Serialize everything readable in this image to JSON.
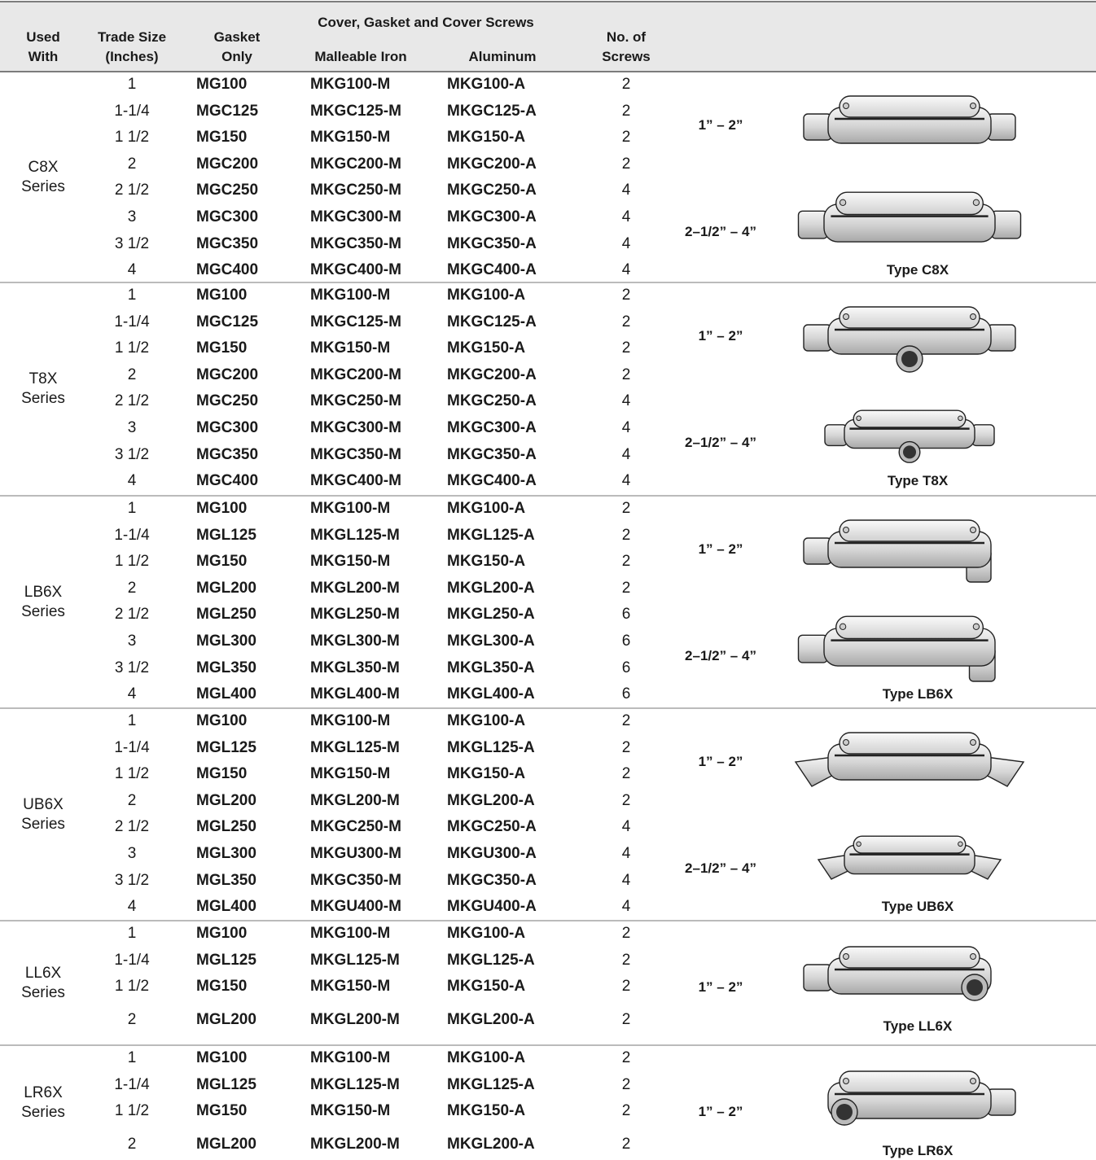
{
  "header": {
    "used_with": "Used With",
    "trade_size": "Trade Size (Inches)",
    "gasket_only": "Gasket Only",
    "cover_group": "Cover, Gasket and Cover Screws",
    "malleable_iron": "Malleable Iron",
    "aluminum": "Aluminum",
    "no_of_screws": "No. of Screws"
  },
  "groups": [
    {
      "used_with": "C8X Series",
      "rows": [
        [
          "1",
          "MG100",
          "MKG100-M",
          "MKG100-A",
          2
        ],
        [
          "1-1/4",
          "MGC125",
          "MKGC125-M",
          "MKGC125-A",
          2
        ],
        [
          "1 1/2",
          "MG150",
          "MKG150-M",
          "MKG150-A",
          2
        ],
        [
          "2",
          "MGC200",
          "MKGC200-M",
          "MKGC200-A",
          2
        ],
        [
          "2 1/2",
          "MGC250",
          "MKGC250-M",
          "MKGC250-A",
          4
        ],
        [
          "3",
          "MGC300",
          "MKGC300-M",
          "MKGC300-A",
          4
        ],
        [
          "3 1/2",
          "MGC350",
          "MKGC350-M",
          "MKGC350-A",
          4
        ],
        [
          "4",
          "MGC400",
          "MKGC400-M",
          "MKGC400-A",
          4
        ]
      ],
      "ranges": [
        "1” – 2”",
        "2–1/2” – 4”"
      ],
      "type_label": "Type C8X"
    },
    {
      "used_with": "T8X Series",
      "rows": [
        [
          "1",
          "MG100",
          "MKG100-M",
          "MKG100-A",
          2
        ],
        [
          "1-1/4",
          "MGC125",
          "MKGC125-M",
          "MKGC125-A",
          2
        ],
        [
          "1 1/2",
          "MG150",
          "MKG150-M",
          "MKG150-A",
          2
        ],
        [
          "2",
          "MGC200",
          "MKGC200-M",
          "MKGC200-A",
          2
        ],
        [
          "2 1/2",
          "MGC250",
          "MKGC250-M",
          "MKGC250-A",
          4
        ],
        [
          "3",
          "MGC300",
          "MKGC300-M",
          "MKGC300-A",
          4
        ],
        [
          "3 1/2",
          "MGC350",
          "MKGC350-M",
          "MKGC350-A",
          4
        ],
        [
          "4",
          "MGC400",
          "MKGC400-M",
          "MKGC400-A",
          4
        ]
      ],
      "ranges": [
        "1” – 2”",
        "2–1/2” – 4”"
      ],
      "type_label": "Type T8X"
    },
    {
      "used_with": "LB6X Series",
      "rows": [
        [
          "1",
          "MG100",
          "MKG100-M",
          "MKG100-A",
          2
        ],
        [
          "1-1/4",
          "MGL125",
          "MKGL125-M",
          "MKGL125-A",
          2
        ],
        [
          "1 1/2",
          "MG150",
          "MKG150-M",
          "MKG150-A",
          2
        ],
        [
          "2",
          "MGL200",
          "MKGL200-M",
          "MKGL200-A",
          2
        ],
        [
          "2 1/2",
          "MGL250",
          "MKGL250-M",
          "MKGL250-A",
          6
        ],
        [
          "3",
          "MGL300",
          "MKGL300-M",
          "MKGL300-A",
          6
        ],
        [
          "3 1/2",
          "MGL350",
          "MKGL350-M",
          "MKGL350-A",
          6
        ],
        [
          "4",
          "MGL400",
          "MKGL400-M",
          "MKGL400-A",
          6
        ]
      ],
      "ranges": [
        "1” – 2”",
        "2–1/2” – 4”"
      ],
      "type_label": "Type LB6X"
    },
    {
      "used_with": "UB6X Series",
      "rows": [
        [
          "1",
          "MG100",
          "MKG100-M",
          "MKG100-A",
          2
        ],
        [
          "1-1/4",
          "MGL125",
          "MKGL125-M",
          "MKGL125-A",
          2
        ],
        [
          "1 1/2",
          "MG150",
          "MKG150-M",
          "MKG150-A",
          2
        ],
        [
          "2",
          "MGL200",
          "MKGL200-M",
          "MKGL200-A",
          2
        ],
        [
          "2 1/2",
          "MGL250",
          "MKGC250-M",
          "MKGC250-A",
          4
        ],
        [
          "3",
          "MGL300",
          "MKGU300-M",
          "MKGU300-A",
          4
        ],
        [
          "3 1/2",
          "MGL350",
          "MKGC350-M",
          "MKGC350-A",
          4
        ],
        [
          "4",
          "MGL400",
          "MKGU400-M",
          "MKGU400-A",
          4
        ]
      ],
      "ranges": [
        "1” – 2”",
        "2–1/2” – 4”"
      ],
      "type_label": "Type UB6X"
    },
    {
      "used_with": "LL6X Series",
      "rows": [
        [
          "1",
          "MG100",
          "MKG100-M",
          "MKG100-A",
          2
        ],
        [
          "1-1/4",
          "MGL125",
          "MKGL125-M",
          "MKGL125-A",
          2
        ],
        [
          "1 1/2",
          "MG150",
          "MKG150-M",
          "MKG150-A",
          2
        ],
        [
          "2",
          "MGL200",
          "MKGL200-M",
          "MKGL200-A",
          2
        ]
      ],
      "ranges": [
        "1” – 2”"
      ],
      "type_label": "Type LL6X"
    },
    {
      "used_with": "LR6X Series",
      "rows": [
        [
          "1",
          "MG100",
          "MKG100-M",
          "MKG100-A",
          2
        ],
        [
          "1-1/4",
          "MGL125",
          "MKGL125-M",
          "MKGL125-A",
          2
        ],
        [
          "1 1/2",
          "MG150",
          "MKG150-M",
          "MKG150-A",
          2
        ],
        [
          "2",
          "MGL200",
          "MKGL200-M",
          "MKGL200-A",
          2
        ]
      ],
      "ranges": [
        "1” – 2”"
      ],
      "type_label": "Type LR6X"
    }
  ]
}
